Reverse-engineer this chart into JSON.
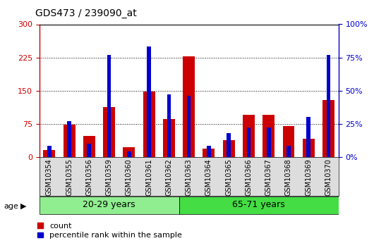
{
  "title": "GDS473 / 239090_at",
  "samples": [
    "GSM10354",
    "GSM10355",
    "GSM10356",
    "GSM10359",
    "GSM10360",
    "GSM10361",
    "GSM10362",
    "GSM10363",
    "GSM10364",
    "GSM10365",
    "GSM10366",
    "GSM10367",
    "GSM10368",
    "GSM10369",
    "GSM10370"
  ],
  "count_values": [
    15,
    72,
    47,
    113,
    22,
    148,
    85,
    228,
    18,
    38,
    95,
    95,
    70,
    40,
    128
  ],
  "percentile_values": [
    8,
    27,
    10,
    77,
    4,
    83,
    47,
    46,
    8,
    18,
    22,
    22,
    8,
    30,
    77
  ],
  "groups": [
    {
      "label": "20-29 years",
      "start": 0,
      "end": 7,
      "color": "#90EE90"
    },
    {
      "label": "65-71 years",
      "start": 7,
      "end": 15,
      "color": "#44DD44"
    }
  ],
  "bar_color_red": "#CC0000",
  "bar_color_blue": "#0000CC",
  "ylim_left": [
    0,
    300
  ],
  "ylim_right": [
    0,
    100
  ],
  "yticks_left": [
    0,
    75,
    150,
    225,
    300
  ],
  "ytick_labels_left": [
    "0",
    "75",
    "150",
    "225",
    "300"
  ],
  "yticks_right": [
    0,
    25,
    50,
    75,
    100
  ],
  "ytick_labels_right": [
    "0%",
    "25%",
    "50%",
    "75%",
    "100%"
  ],
  "axis_left_color": "#CC0000",
  "axis_right_color": "#0000CC",
  "legend_count": "count",
  "legend_percentile": "percentile rank within the sample",
  "age_label": "age",
  "group_label_fontsize": 9,
  "bar_width": 0.6,
  "blue_bar_width": 0.2,
  "tick_label_fontsize": 7,
  "title_fontsize": 10,
  "grid_yticks": [
    75,
    150,
    225
  ]
}
